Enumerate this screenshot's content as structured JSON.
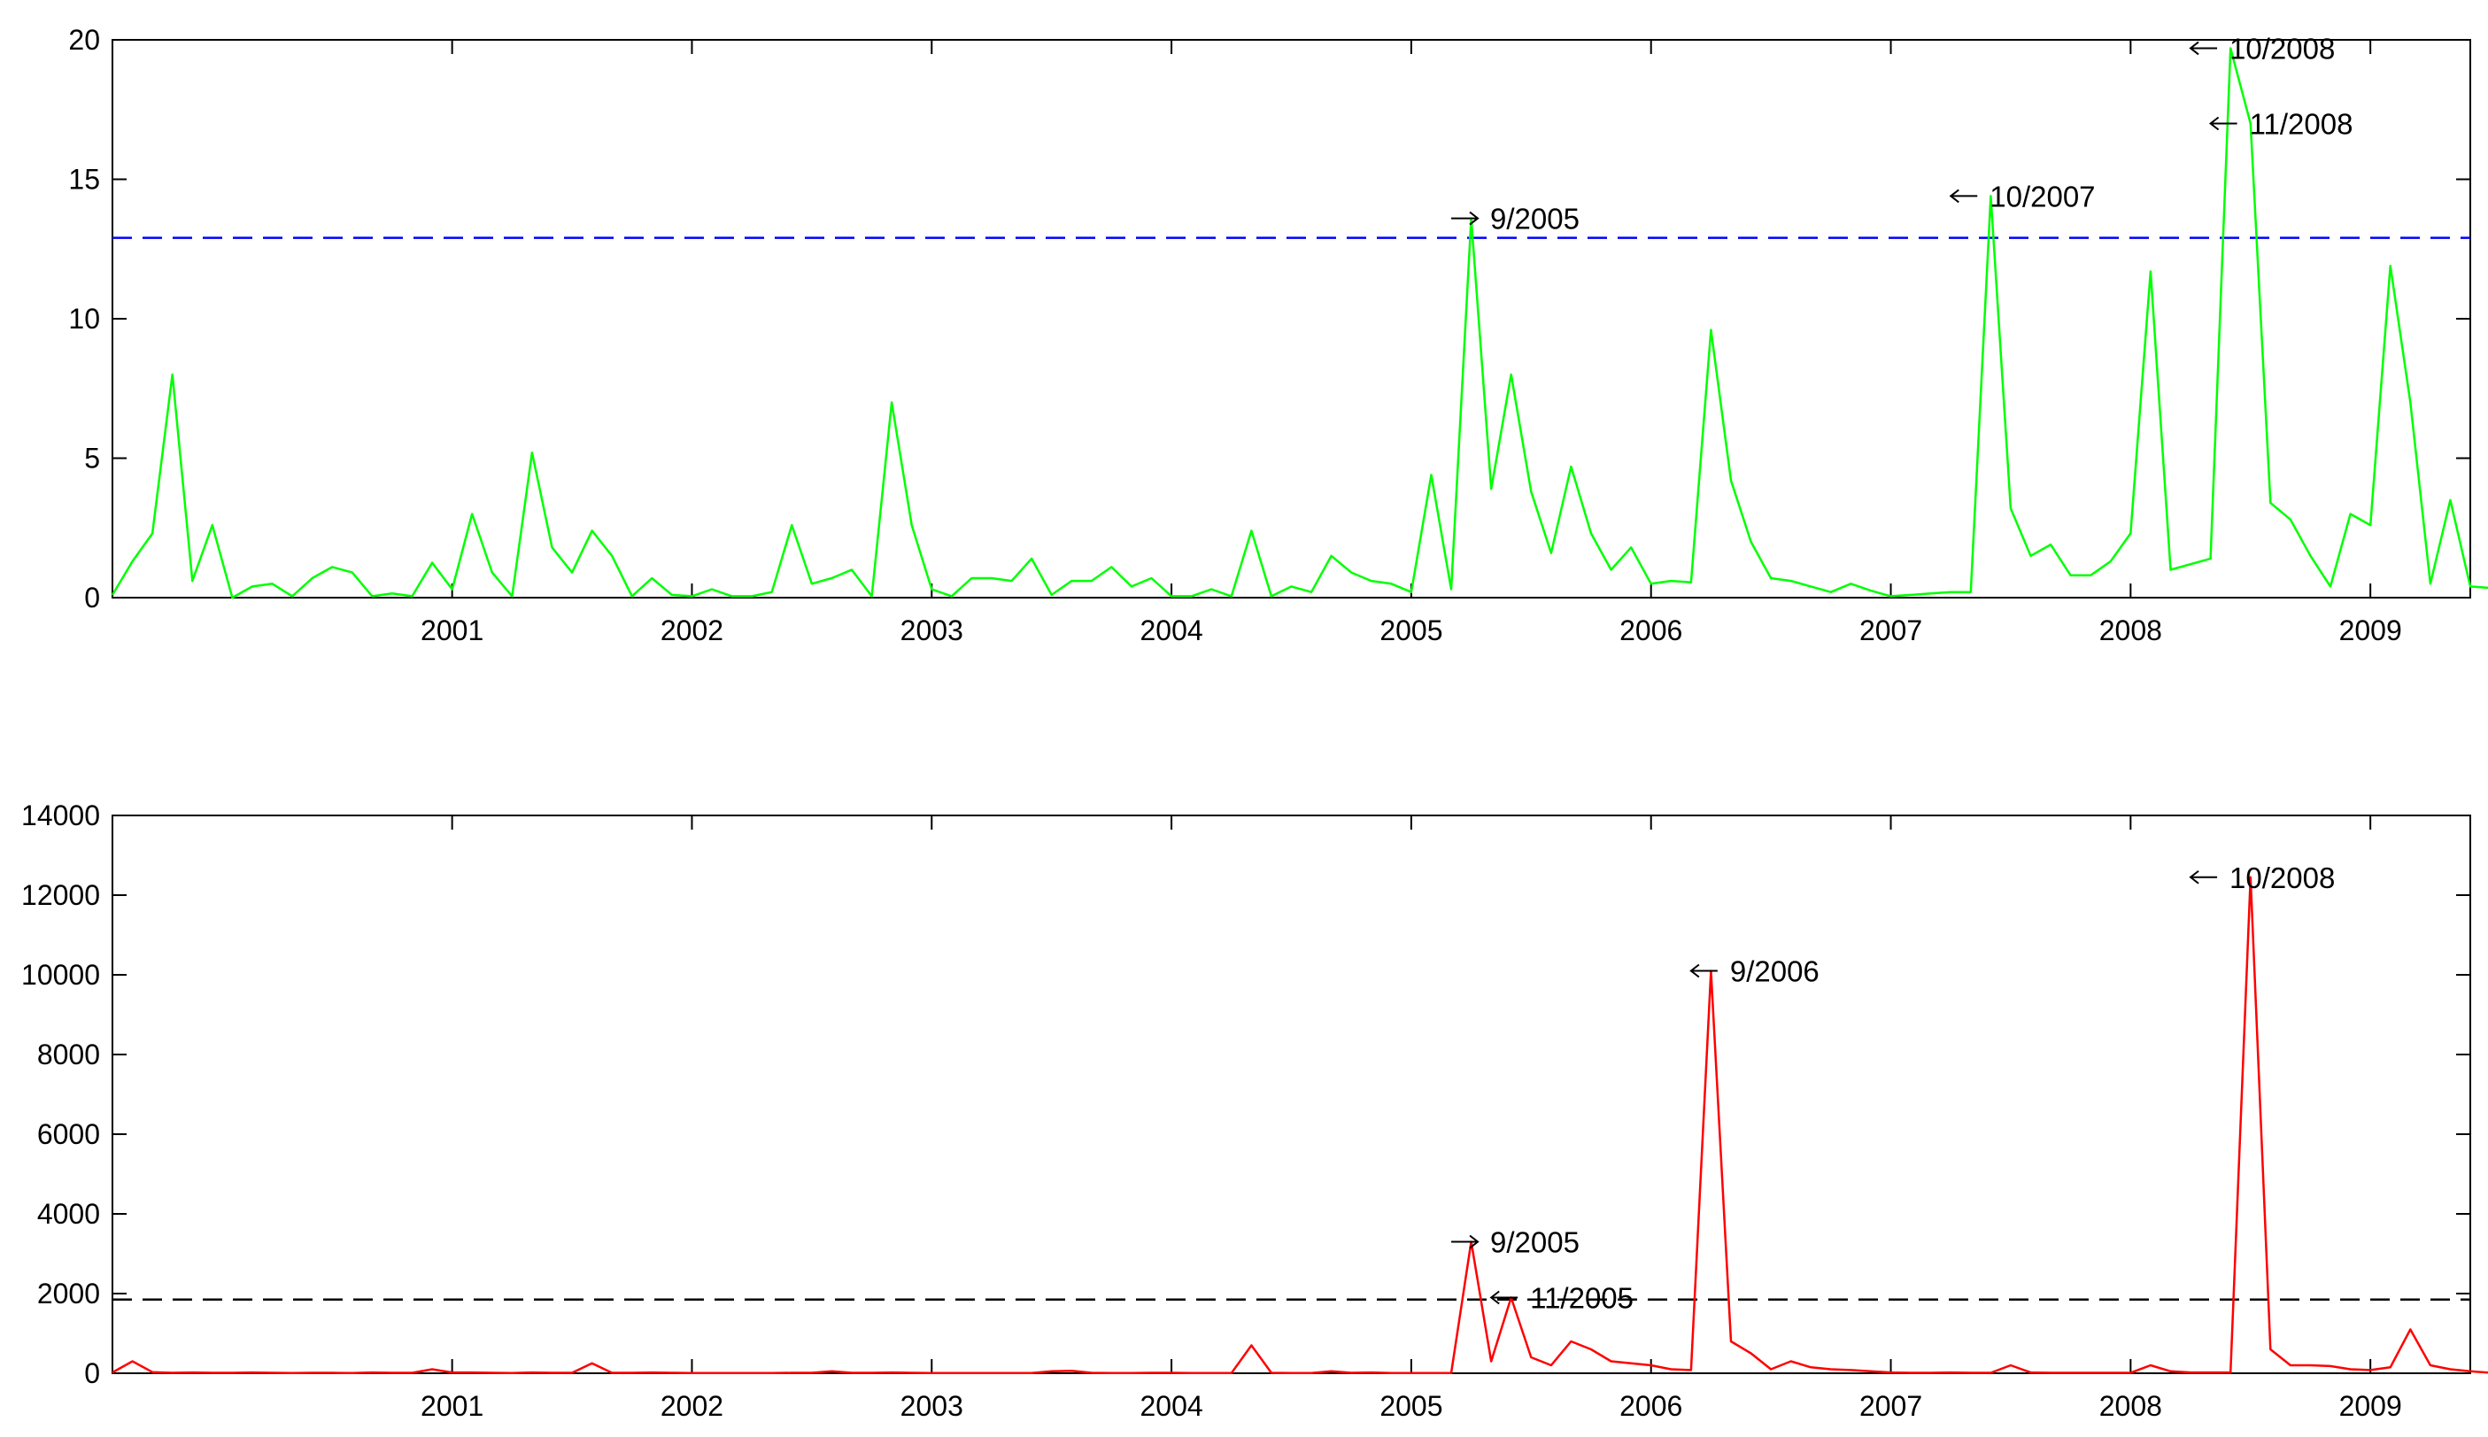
{
  "chart_data": [
    {
      "type": "line",
      "title": "",
      "xlabel": "",
      "ylabel": "",
      "ylim": [
        0,
        20
      ],
      "yticks": [
        "0",
        "5",
        "10",
        "15",
        "20"
      ],
      "xticks": [
        "2001",
        "2002",
        "2003",
        "2004",
        "2005",
        "2006",
        "2007",
        "2008",
        "2009"
      ],
      "grid": false,
      "series": [
        {
          "color": "#00ff00",
          "start": "2000-02",
          "values": [
            0.1,
            1.3,
            2.3,
            8.0,
            0.6,
            2.6,
            0.0,
            0.4,
            0.5,
            0.05,
            0.7,
            1.1,
            0.9,
            0.05,
            0.15,
            0.05,
            1.25,
            0.3,
            3.0,
            0.9,
            0.05,
            5.2,
            1.8,
            0.9,
            2.4,
            1.5,
            0.05,
            0.7,
            0.1,
            0.05,
            0.3,
            0.05,
            0.05,
            0.2,
            2.6,
            0.5,
            0.7,
            1.0,
            0.05,
            7.0,
            2.6,
            0.3,
            0.05,
            0.7,
            0.7,
            0.6,
            1.4,
            0.1,
            0.6,
            0.6,
            1.1,
            0.4,
            0.7,
            0.05,
            0.05,
            0.3,
            0.05,
            2.4,
            0.05,
            0.4,
            0.2,
            1.5,
            0.9,
            0.6,
            0.5,
            0.2,
            4.4,
            0.3,
            13.6,
            3.9,
            8.0,
            3.8,
            1.6,
            4.7,
            2.3,
            1.0,
            1.8,
            0.5,
            0.6,
            0.55,
            9.6,
            4.2,
            2.0,
            0.7,
            0.6,
            0.4,
            0.2,
            0.5,
            0.25,
            0.05,
            0.1,
            0.15,
            0.2,
            0.2,
            14.4,
            3.2,
            1.5,
            1.9,
            0.8,
            0.8,
            1.3,
            2.3,
            11.7,
            1.0,
            1.2,
            1.4,
            19.7,
            17.0,
            3.4,
            2.8,
            1.5,
            0.4,
            3.0,
            2.6,
            11.9,
            7.0,
            0.5,
            3.5,
            0.4,
            0.35,
            0.35
          ]
        }
      ],
      "threshold": {
        "value": 12.9,
        "color": "#0000ff"
      },
      "annotations": [
        {
          "label": "9/2005",
          "x": "2005-09",
          "y": 13.6,
          "arrow": "right"
        },
        {
          "label": "10/2007",
          "x": "2007-10",
          "y": 14.4,
          "arrow": "left"
        },
        {
          "label": "10/2008",
          "x": "2008-10",
          "y": 19.7,
          "arrow": "left"
        },
        {
          "label": "11/2008",
          "x": "2008-11",
          "y": 17.0,
          "arrow": "left"
        }
      ]
    },
    {
      "type": "line",
      "title": "",
      "xlabel": "",
      "ylabel": "",
      "ylim": [
        0,
        14000
      ],
      "yticks": [
        "0",
        "2000",
        "4000",
        "6000",
        "8000",
        "10000",
        "12000",
        "14000"
      ],
      "xticks": [
        "2001",
        "2002",
        "2003",
        "2004",
        "2005",
        "2006",
        "2007",
        "2008",
        "2009"
      ],
      "grid": false,
      "series": [
        {
          "color": "#ff0000",
          "start": "2000-02",
          "values": [
            20,
            300,
            30,
            10,
            20,
            10,
            10,
            20,
            10,
            5,
            10,
            10,
            5,
            20,
            10,
            10,
            100,
            20,
            20,
            10,
            5,
            20,
            10,
            10,
            250,
            10,
            10,
            20,
            10,
            5,
            5,
            5,
            5,
            5,
            10,
            10,
            50,
            10,
            10,
            20,
            10,
            5,
            5,
            5,
            5,
            5,
            5,
            50,
            60,
            10,
            5,
            5,
            10,
            10,
            5,
            5,
            5,
            700,
            10,
            5,
            5,
            50,
            10,
            20,
            5,
            5,
            5,
            5,
            3300,
            300,
            1900,
            400,
            200,
            800,
            600,
            300,
            250,
            200,
            100,
            80,
            10100,
            800,
            500,
            100,
            300,
            150,
            100,
            80,
            50,
            20,
            10,
            10,
            20,
            10,
            10,
            200,
            20,
            10,
            10,
            10,
            10,
            10,
            200,
            50,
            20,
            20,
            20,
            12450,
            600,
            200,
            200,
            180,
            100,
            80,
            150,
            1100,
            200,
            100,
            50,
            10,
            5
          ]
        }
      ],
      "threshold": {
        "value": 1850,
        "color": "#000000"
      },
      "annotations": [
        {
          "label": "9/2005",
          "x": "2005-09",
          "y": 3300,
          "arrow": "right"
        },
        {
          "label": "11/2005",
          "x": "2005-11",
          "y": 1900,
          "arrow": "left"
        },
        {
          "label": "9/2006",
          "x": "2006-09",
          "y": 10100,
          "arrow": "left"
        },
        {
          "label": "10/2008",
          "x": "2008-10",
          "y": 12450,
          "arrow": "left"
        }
      ]
    }
  ]
}
